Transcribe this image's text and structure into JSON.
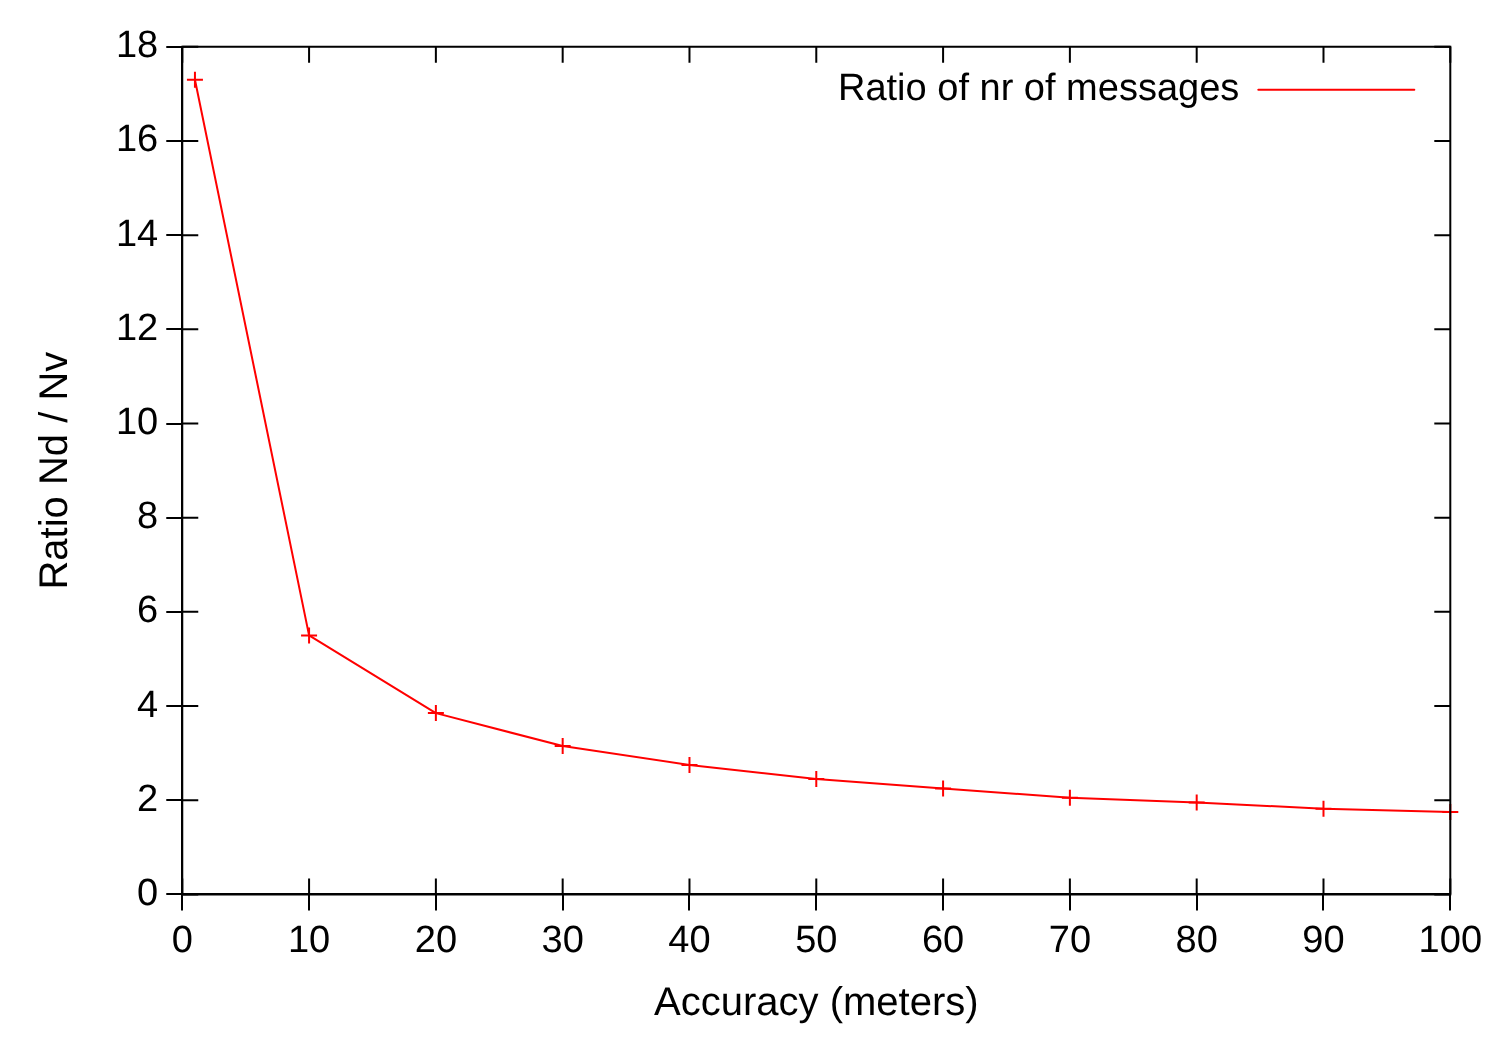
{
  "chart_data": {
    "type": "line",
    "xlabel": "Accuracy (meters)",
    "ylabel": "Ratio Nd / Nv",
    "x": [
      1,
      10,
      20,
      30,
      40,
      50,
      60,
      70,
      80,
      90,
      100
    ],
    "series": [
      {
        "name": "Ratio of nr of messages",
        "color": "#ff0000",
        "values": [
          17.3,
          5.5,
          3.85,
          3.15,
          2.75,
          2.45,
          2.25,
          2.05,
          1.95,
          1.82,
          1.75
        ]
      }
    ],
    "xlim": [
      0,
      100
    ],
    "xticks": [
      0,
      10,
      20,
      30,
      40,
      50,
      60,
      70,
      80,
      90,
      100
    ],
    "ylim": [
      0,
      18
    ],
    "yticks": [
      0,
      2,
      4,
      6,
      8,
      10,
      12,
      14,
      16,
      18
    ],
    "grid": false,
    "legend": "top right",
    "marker": "cross",
    "line_style": "solid"
  }
}
